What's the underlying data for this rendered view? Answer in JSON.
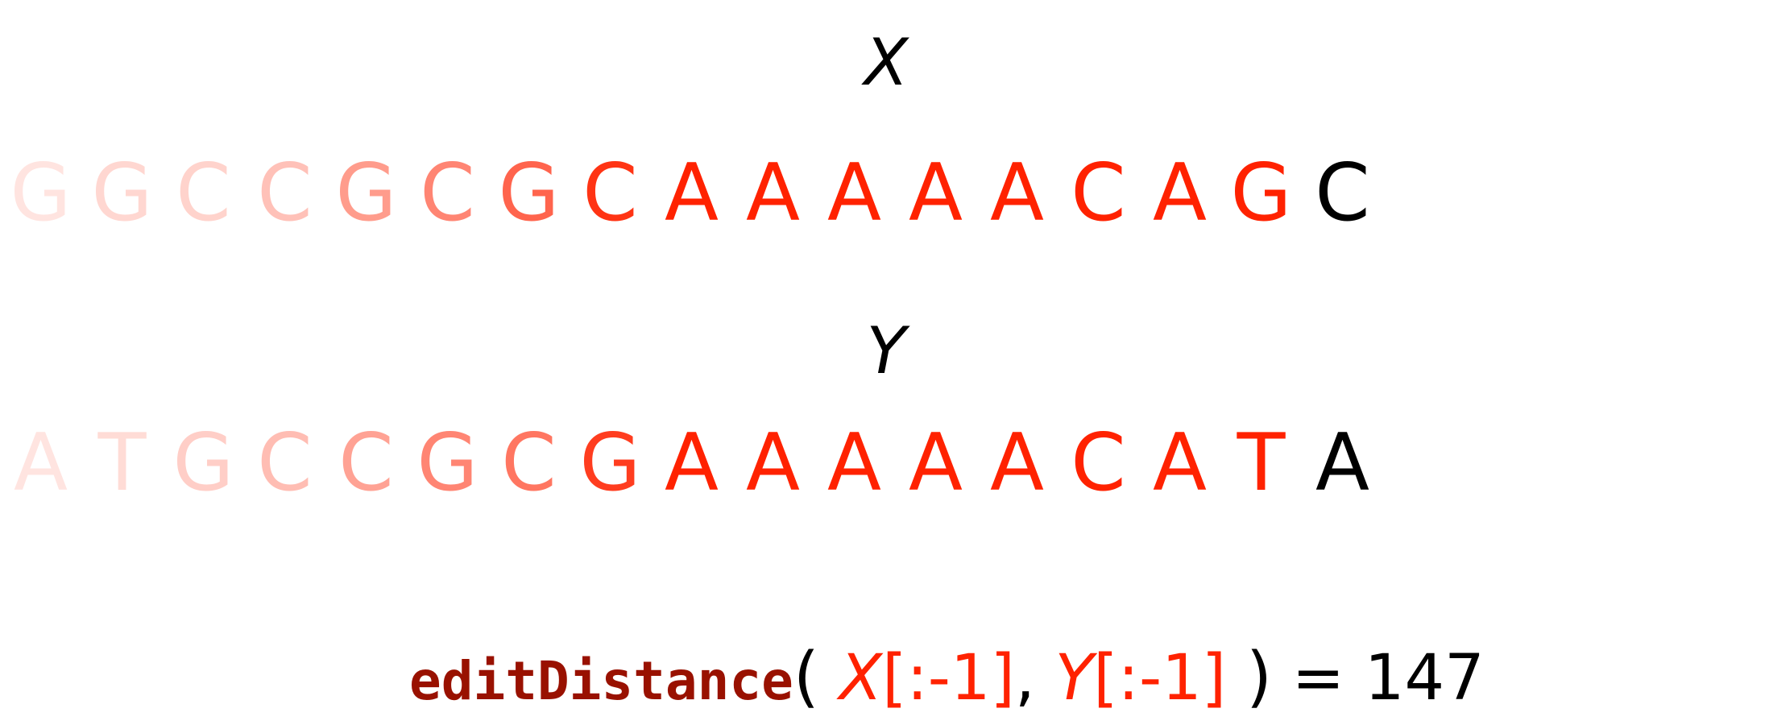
{
  "labels": {
    "x": "X",
    "y": "Y"
  },
  "sequences": {
    "x": [
      "G",
      "G",
      "C",
      "C",
      "G",
      "C",
      "G",
      "C",
      "A",
      "A",
      "A",
      "A",
      "A",
      "C",
      "A",
      "G",
      "C"
    ],
    "y": [
      "A",
      "T",
      "G",
      "C",
      "C",
      "G",
      "C",
      "G",
      "A",
      "A",
      "A",
      "A",
      "A",
      "C",
      "A",
      "T",
      "A"
    ]
  },
  "shading": {
    "x": [
      0.12,
      0.18,
      0.2,
      0.28,
      0.45,
      0.55,
      0.7,
      0.92,
      1,
      1,
      1,
      1,
      1,
      1,
      1,
      1,
      0
    ],
    "y": [
      0.12,
      0.16,
      0.22,
      0.3,
      0.42,
      0.55,
      0.62,
      0.88,
      1,
      1,
      1,
      1,
      1,
      1,
      1,
      1,
      0
    ]
  },
  "colors": {
    "highlight": "#ff2200",
    "last_char": "#000000",
    "function": "#991100",
    "text": "#000000",
    "slice": "#ff2200"
  },
  "formula": {
    "function_name": "editDistance",
    "open_paren": "(",
    "x_var": "X",
    "x_slice": "[:-1]",
    "comma": ",",
    "y_var": "Y",
    "y_slice": "[:-1]",
    "close_paren": ")",
    "equals": "=",
    "result": "147"
  }
}
